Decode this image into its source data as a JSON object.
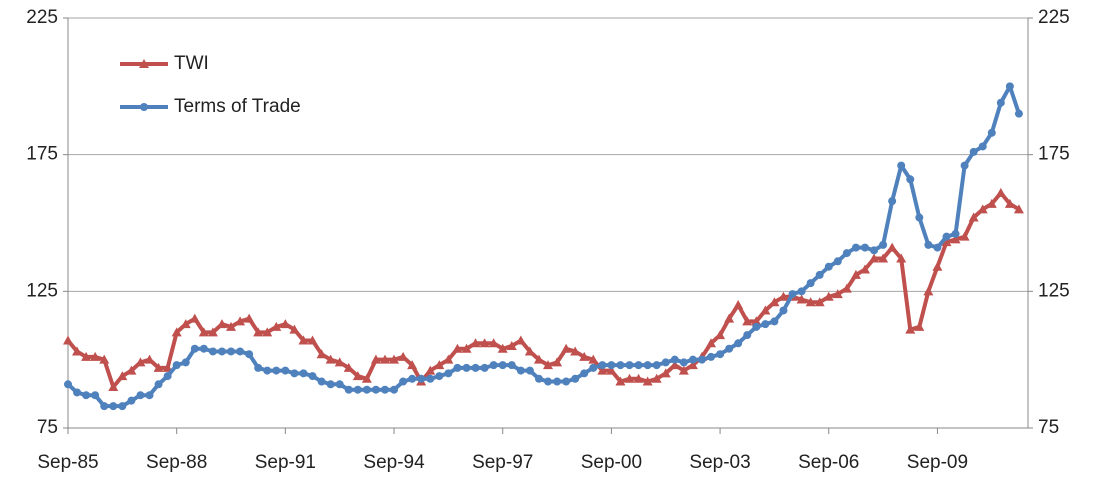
{
  "chart_data": {
    "type": "line",
    "categories": [
      "Sep-85",
      null,
      null,
      null,
      null,
      null,
      null,
      null,
      null,
      null,
      null,
      null,
      "Sep-88",
      null,
      null,
      null,
      null,
      null,
      null,
      null,
      null,
      null,
      null,
      null,
      "Sep-91",
      null,
      null,
      null,
      null,
      null,
      null,
      null,
      null,
      null,
      null,
      null,
      "Sep-94",
      null,
      null,
      null,
      null,
      null,
      null,
      null,
      null,
      null,
      null,
      null,
      "Sep-97",
      null,
      null,
      null,
      null,
      null,
      null,
      null,
      null,
      null,
      null,
      null,
      "Sep-00",
      null,
      null,
      null,
      null,
      null,
      null,
      null,
      null,
      null,
      null,
      null,
      "Sep-03",
      null,
      null,
      null,
      null,
      null,
      null,
      null,
      null,
      null,
      null,
      null,
      "Sep-06",
      null,
      null,
      null,
      null,
      null,
      null,
      null,
      null,
      null,
      null,
      null,
      "Sep-09",
      null,
      null,
      null,
      null,
      null,
      null,
      null,
      null,
      null
    ],
    "series": [
      {
        "name": "TWI",
        "color": "#c0504d",
        "marker": "triangle",
        "values": [
          107,
          103,
          101,
          101,
          100,
          90,
          94,
          96,
          99,
          100,
          97,
          97,
          110,
          113,
          115,
          110,
          110,
          113,
          112,
          114,
          115,
          110,
          110,
          112,
          113,
          111,
          107,
          107,
          102,
          100,
          99,
          97,
          94,
          93,
          100,
          100,
          100,
          101,
          98,
          92,
          96,
          98,
          100,
          104,
          104,
          106,
          106,
          106,
          104,
          105,
          107,
          103,
          100,
          98,
          99,
          104,
          103,
          101,
          100,
          96,
          96,
          92,
          93,
          93,
          92,
          93,
          95,
          98,
          96,
          98,
          101,
          106,
          109,
          115,
          120,
          114,
          114,
          118,
          121,
          123,
          123,
          122,
          121,
          121,
          123,
          124,
          126,
          131,
          133,
          137,
          137,
          141,
          137,
          111,
          112,
          125,
          134,
          143,
          144,
          145,
          152,
          155,
          157,
          161,
          157,
          155
        ]
      },
      {
        "name": "Terms of Trade",
        "color": "#4f81bd",
        "marker": "circle",
        "values": [
          91,
          88,
          87,
          87,
          83,
          83,
          83,
          85,
          87,
          87,
          91,
          94,
          98,
          99,
          104,
          104,
          103,
          103,
          103,
          103,
          102,
          97,
          96,
          96,
          96,
          95,
          95,
          94,
          92,
          91,
          91,
          89,
          89,
          89,
          89,
          89,
          89,
          92,
          93,
          93,
          93,
          94,
          95,
          97,
          97,
          97,
          97,
          98,
          98,
          98,
          96,
          96,
          93,
          92,
          92,
          92,
          93,
          95,
          97,
          98,
          98,
          98,
          98,
          98,
          98,
          98,
          99,
          100,
          99,
          100,
          100,
          101,
          102,
          104,
          106,
          109,
          112,
          113,
          114,
          118,
          124,
          125,
          128,
          131,
          134,
          136,
          139,
          141,
          141,
          140,
          142,
          158,
          171,
          166,
          152,
          142,
          141,
          145,
          146,
          171,
          176,
          178,
          183,
          194,
          200,
          190
        ]
      }
    ],
    "ylim": [
      75,
      225
    ],
    "yticks": [
      75,
      125,
      175,
      225
    ],
    "y2lim": [
      75,
      225
    ],
    "y2ticks": [
      75,
      125,
      175,
      225
    ],
    "grid": true,
    "legend": "top-left"
  }
}
